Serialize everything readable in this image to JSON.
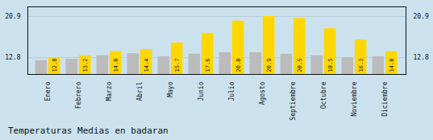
{
  "chart_data": {
    "type": "bar",
    "title": "Temperaturas Medias en badaran",
    "categories": [
      "Enero",
      "Febrero",
      "Marzo",
      "Abril",
      "Mayo",
      "Junio",
      "Julio",
      "Agosto",
      "Septiembre",
      "Octubre",
      "Noviembre",
      "Diciembre"
    ],
    "series": [
      {
        "color": "#BBBBBB",
        "values": [
          12.2,
          12.5,
          13.2,
          13.6,
          13.0,
          13.5,
          13.8,
          13.8,
          13.5,
          13.2,
          12.8,
          13.0
        ]
      },
      {
        "color": "#FFD700",
        "values": [
          12.8,
          13.2,
          14.0,
          14.4,
          15.7,
          17.6,
          20.0,
          20.9,
          20.5,
          18.5,
          16.3,
          14.0
        ],
        "value_labels": [
          "12.8",
          "13.2",
          "14.0",
          "14.4",
          "15.7",
          "17.6",
          "20.0",
          "20.9",
          "20.5",
          "18.5",
          "16.3",
          "14.0"
        ],
        "data_labels": true
      }
    ],
    "ylim": [
      9.5,
      22.8
    ],
    "yticks": [
      12.8,
      20.9
    ],
    "grid": true
  }
}
